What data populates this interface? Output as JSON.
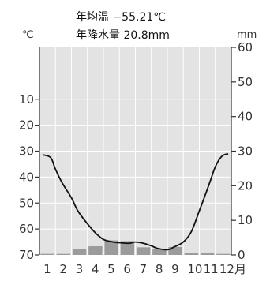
{
  "summary": {
    "mean_temp_label": "年均温 −55.21℃",
    "precip_label": "年降水量 20.8mm"
  },
  "axes": {
    "left_unit": "℃",
    "right_unit": "mm",
    "month_suffix": "月"
  },
  "chart_data": {
    "type": "climograph",
    "categories": [
      "1",
      "2",
      "3",
      "4",
      "5",
      "6",
      "7",
      "8",
      "9",
      "10",
      "11",
      "12"
    ],
    "x_tick_labels": [
      "1",
      "2",
      "3",
      "4",
      "5",
      "6",
      "7",
      "8",
      "9",
      "10",
      "11",
      "12月"
    ],
    "temperature_line_x": [
      0.2,
      0.7,
      1,
      1.4,
      2,
      2.4,
      3,
      3.5,
      4,
      4.6,
      5,
      5.6,
      6,
      6.5,
      7,
      7.4,
      8,
      8.4,
      9,
      9.5,
      10,
      10.6,
      11,
      11.4,
      11.8
    ],
    "temperature_line_y": [
      -31.4,
      -32.5,
      -37,
      -42,
      -48,
      -53,
      -58,
      -61.5,
      -64,
      -65,
      -65.3,
      -65.5,
      -65,
      -65.5,
      -66.5,
      -67.5,
      -68,
      -67,
      -65,
      -61,
      -53,
      -43,
      -36,
      -32,
      -31
    ],
    "precipitation": [
      0.3,
      0.3,
      1.8,
      2.5,
      4.2,
      4.0,
      2.2,
      1.8,
      2.3,
      0.5,
      0.6,
      0.3
    ],
    "ylim_temp": [
      -70,
      10
    ],
    "ylim_precip": [
      0,
      60
    ],
    "temp_ticks": [
      -70,
      -60,
      -50,
      -40,
      -30,
      -20,
      -10
    ],
    "temp_tick_labels": [
      "70",
      "60",
      "50",
      "40",
      "30",
      "20",
      "10"
    ],
    "precip_ticks": [
      0,
      10,
      20,
      30,
      40,
      50,
      60
    ],
    "grid": true,
    "colors": {
      "temperature": "#111111",
      "precipitation": "#9b9b9b",
      "plot_background": "#e3e3e3"
    }
  }
}
